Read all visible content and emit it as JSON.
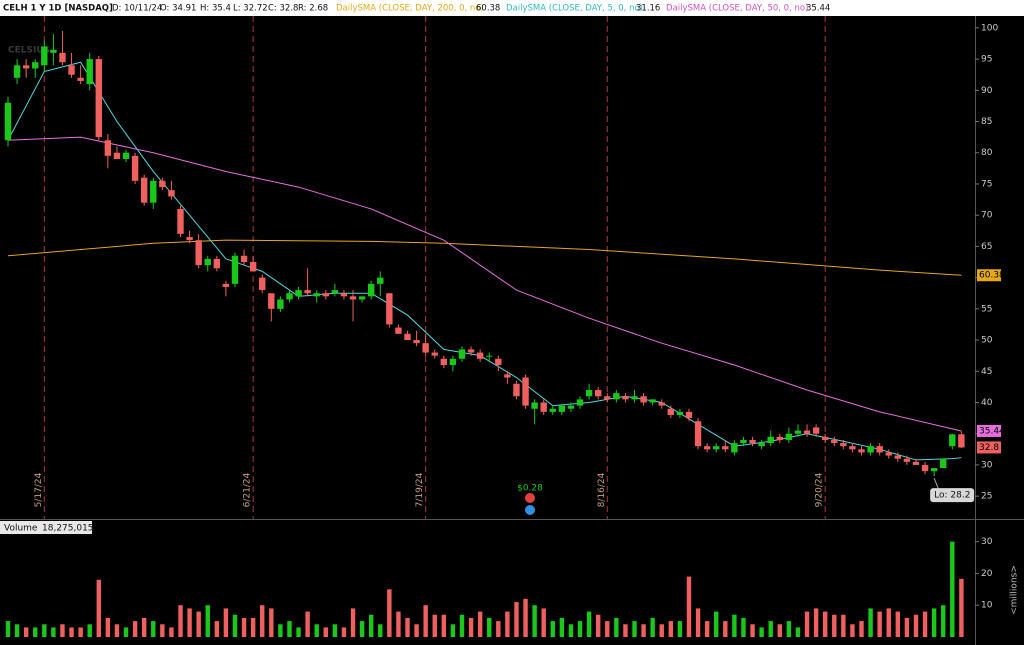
{
  "header": {
    "symbol": "CELH 1 Y 1D [NASDAQ]",
    "date": "D: 10/11/24",
    "open": "O: 34.91",
    "high": "H: 35.4",
    "low": "L: 32.72",
    "close": "C: 32.8",
    "range": "R: 2.68"
  },
  "watermark": "CELSIUS",
  "chart_data": [
    {
      "type": "candlestick",
      "categories": [
        null,
        null,
        null,
        null,
        "5/17/24",
        null,
        null,
        null,
        null,
        null,
        null,
        null,
        null,
        null,
        null,
        null,
        null,
        null,
        null,
        null,
        null,
        null,
        null,
        null,
        null,
        null,
        null,
        "6/21/24",
        null,
        null,
        null,
        null,
        null,
        null,
        null,
        null,
        null,
        null,
        null,
        null,
        null,
        null,
        null,
        null,
        null,
        null,
        "7/19/24",
        null,
        null,
        null,
        null,
        null,
        null,
        null,
        null,
        null,
        null,
        null,
        null,
        null,
        null,
        null,
        null,
        null,
        null,
        null,
        "8/16/24",
        null,
        null,
        null,
        null,
        null,
        null,
        null,
        null,
        null,
        null,
        null,
        null,
        null,
        null,
        null,
        null,
        null,
        null,
        null,
        null,
        null,
        null,
        null,
        "9/20/24",
        null,
        null,
        null,
        null,
        null,
        null,
        null,
        null,
        null,
        null,
        null,
        null,
        null,
        null,
        null
      ],
      "candles": [
        [
          82,
          89,
          81,
          88
        ],
        [
          92,
          95,
          91,
          94
        ],
        [
          94,
          95,
          92,
          93.5
        ],
        [
          93.5,
          95,
          92,
          94.5
        ],
        [
          94,
          98,
          93,
          97
        ],
        [
          96,
          99,
          94,
          96.5
        ],
        [
          96,
          99.5,
          94,
          94.5
        ],
        [
          94,
          96,
          92,
          92.5
        ],
        [
          92,
          94,
          91,
          91.5
        ],
        [
          91,
          96,
          90,
          95
        ],
        [
          95,
          95.5,
          82,
          82.5
        ],
        [
          82,
          83,
          77.5,
          79.5
        ],
        [
          80,
          81,
          79,
          79
        ],
        [
          79,
          80.5,
          78.5,
          80
        ],
        [
          79.5,
          80,
          75,
          75.5
        ],
        [
          76,
          76.5,
          71.5,
          72
        ],
        [
          72,
          76,
          71,
          75.5
        ],
        [
          75.5,
          76,
          74,
          74.5
        ],
        [
          74,
          75.5,
          72.5,
          73
        ],
        [
          71,
          71.5,
          66.5,
          67
        ],
        [
          66.5,
          67.5,
          65.5,
          66
        ],
        [
          66,
          67,
          61.5,
          62
        ],
        [
          62,
          63.5,
          61,
          63
        ],
        [
          63,
          63.5,
          61,
          61.5
        ],
        [
          59,
          59.5,
          57,
          58.5
        ],
        [
          59,
          64,
          58.5,
          63.5
        ],
        [
          63.5,
          64.5,
          62,
          62.5
        ],
        [
          62.5,
          63.5,
          61,
          61
        ],
        [
          60,
          60.5,
          57.5,
          58
        ],
        [
          57.5,
          57.5,
          53,
          55
        ],
        [
          55,
          57,
          54.5,
          56.5
        ],
        [
          56.5,
          58,
          56,
          57.5
        ],
        [
          57,
          58.5,
          56.5,
          58
        ],
        [
          58,
          61.5,
          57,
          57.5
        ],
        [
          57,
          58,
          56,
          57.5
        ],
        [
          57.5,
          58,
          56.5,
          57
        ],
        [
          57.5,
          59,
          57,
          58
        ],
        [
          57.5,
          58,
          56.5,
          57
        ],
        [
          57,
          58,
          53,
          56.5
        ],
        [
          56.5,
          57,
          56,
          57
        ],
        [
          57,
          59.5,
          56.5,
          59
        ],
        [
          59,
          61,
          57,
          60
        ],
        [
          57.5,
          57.5,
          52,
          52.5
        ],
        [
          52,
          52.5,
          51,
          51
        ],
        [
          51,
          51.5,
          50,
          50
        ],
        [
          50,
          51.5,
          49,
          49.5
        ],
        [
          49.5,
          51,
          47.5,
          48
        ],
        [
          48,
          48.5,
          47,
          47.5
        ],
        [
          47,
          47.5,
          45.5,
          46
        ],
        [
          46,
          47.5,
          45,
          47
        ],
        [
          47,
          49,
          46.5,
          48.5
        ],
        [
          48.5,
          49,
          47.5,
          48
        ],
        [
          48,
          48.5,
          46.5,
          47
        ],
        [
          47.5,
          48,
          46.5,
          47.5
        ],
        [
          47,
          47.5,
          45,
          46
        ],
        [
          44.5,
          45,
          43,
          44
        ],
        [
          43,
          43.5,
          40.5,
          41
        ],
        [
          44,
          44.5,
          39,
          39.5
        ],
        [
          39,
          40.5,
          36.5,
          40
        ],
        [
          40,
          40.5,
          38,
          38.5
        ],
        [
          38.5,
          39.5,
          38,
          39
        ],
        [
          38.5,
          39.5,
          38,
          39.5
        ],
        [
          39,
          40,
          38.5,
          39.5
        ],
        [
          39.5,
          41,
          39,
          40.5
        ],
        [
          41,
          43,
          40.5,
          42
        ],
        [
          42,
          42.5,
          40.5,
          41
        ],
        [
          41,
          41.5,
          40,
          40.5
        ],
        [
          40.5,
          42,
          40,
          41.5
        ],
        [
          41,
          41.5,
          40,
          40.5
        ],
        [
          40.5,
          42,
          40,
          41
        ],
        [
          41,
          41.5,
          39.5,
          40
        ],
        [
          40,
          40.5,
          39.5,
          40.5
        ],
        [
          40,
          40.5,
          39,
          39.5
        ],
        [
          39,
          39.5,
          37.5,
          38
        ],
        [
          38,
          39,
          37.5,
          38.5
        ],
        [
          38.5,
          39,
          37,
          37.5
        ],
        [
          37,
          37.5,
          32.5,
          33
        ],
        [
          33,
          33.5,
          32,
          32.5
        ],
        [
          32.5,
          33.5,
          32,
          33
        ],
        [
          33,
          34,
          32,
          32.5
        ],
        [
          32,
          34,
          31.5,
          33.5
        ],
        [
          33.5,
          34.5,
          33,
          34
        ],
        [
          34,
          34.5,
          33,
          33.5
        ],
        [
          33,
          34,
          32.5,
          33.5
        ],
        [
          33.5,
          35.5,
          33,
          34.5
        ],
        [
          34.5,
          35,
          33.5,
          34
        ],
        [
          34,
          36,
          33.5,
          35
        ],
        [
          35,
          36.5,
          34.5,
          35.5
        ],
        [
          35.5,
          36.5,
          34.5,
          35
        ],
        [
          36,
          36.5,
          34.5,
          35
        ],
        [
          34.5,
          35,
          33.5,
          34
        ],
        [
          34,
          34.5,
          33,
          33.5
        ],
        [
          33.5,
          34,
          32.5,
          33
        ],
        [
          33,
          33.5,
          32,
          32.5
        ],
        [
          32.5,
          33,
          31.5,
          32
        ],
        [
          32,
          33.5,
          31.5,
          33
        ],
        [
          33,
          33.5,
          31.5,
          32
        ],
        [
          32,
          32.5,
          31,
          31.5
        ],
        [
          31.5,
          32,
          30.5,
          31
        ],
        [
          31,
          31.5,
          30,
          30.5
        ],
        [
          30.5,
          31,
          30,
          30
        ],
        [
          30,
          30.5,
          28.5,
          29
        ],
        [
          29,
          29.5,
          28.2,
          29.5
        ],
        [
          29.5,
          31,
          29.5,
          31
        ],
        [
          33,
          35,
          32.5,
          34.9
        ],
        [
          34.91,
          35.4,
          32.72,
          32.8
        ]
      ],
      "up_color": "#19c819",
      "down_color": "#f0605f",
      "sma": [
        {
          "name": "DailySMA (CLOSE, DAY, 200, 0, no)",
          "color": "#e6a817",
          "x": [
            0,
            16,
            24,
            40,
            48,
            64,
            80,
            96,
            105
          ],
          "values": [
            63.5,
            65.5,
            66,
            65.8,
            65.5,
            64.5,
            63,
            61.2,
            60.38
          ]
        },
        {
          "name": "DailySMA (CLOSE, DAY, 5, 0, no)",
          "color": "#4fd8e0",
          "x": [
            0,
            4,
            8,
            12,
            16,
            20,
            24,
            28,
            32,
            36,
            40,
            44,
            48,
            52,
            56,
            60,
            64,
            68,
            72,
            76,
            80,
            84,
            88,
            92,
            96,
            100,
            104,
            105
          ],
          "values": [
            82,
            93,
            94.5,
            85,
            77,
            70,
            63,
            61,
            57,
            57.5,
            57.5,
            54,
            48.5,
            47.5,
            44,
            39.5,
            40,
            41,
            40,
            36.5,
            33,
            33.8,
            35,
            33.8,
            32.5,
            30.8,
            31,
            31.16
          ]
        },
        {
          "name": "DailySMA (CLOSE, DAY, 50, 0, no)",
          "color": "#e86ee0",
          "x": [
            0,
            8,
            16,
            24,
            32,
            40,
            48,
            56,
            64,
            72,
            80,
            88,
            96,
            105
          ],
          "values": [
            82,
            82.5,
            80,
            77,
            74.5,
            71,
            66,
            58,
            53.5,
            49.5,
            46,
            42,
            38.5,
            35.44
          ]
        }
      ],
      "xlim": [
        -0.88,
        106.5
      ],
      "ylim": [
        21.5,
        101.9
      ],
      "yticks": [
        25,
        30,
        35,
        40,
        45,
        50,
        55,
        60,
        65,
        70,
        75,
        80,
        85,
        90,
        95,
        100
      ],
      "annotations": {
        "dividend": "$0.28",
        "low": "Lo: 28.2"
      }
    },
    {
      "type": "volume",
      "title": "Volume",
      "last": "18,275,015",
      "ylabel": "<millions>",
      "values": [
        5,
        4,
        3,
        3,
        4,
        3,
        4,
        3,
        3,
        4,
        18,
        6,
        4,
        3,
        5,
        6,
        5,
        4,
        3,
        10,
        9,
        8,
        10,
        5,
        9,
        7,
        6,
        6,
        10,
        9,
        4,
        5,
        3,
        8,
        4,
        3,
        4,
        3,
        9,
        5,
        7,
        4,
        15,
        8,
        6,
        4,
        10,
        7,
        7,
        4,
        7,
        6,
        8,
        6,
        5,
        8,
        11,
        12,
        10,
        9,
        5,
        6,
        4,
        5,
        8,
        7,
        5,
        6,
        4,
        5,
        4,
        6,
        4,
        5,
        5,
        19,
        9,
        5,
        8,
        5,
        7,
        6,
        4,
        3,
        5,
        4,
        5,
        3,
        8,
        9,
        8,
        7,
        7,
        4,
        5,
        9,
        8,
        9,
        8,
        6,
        7,
        8,
        9,
        10,
        30,
        18.3
      ],
      "xlim": [
        -0.88,
        106.5
      ],
      "ylim": [
        0,
        36.5
      ],
      "yticks": [
        10,
        20,
        30
      ]
    }
  ]
}
